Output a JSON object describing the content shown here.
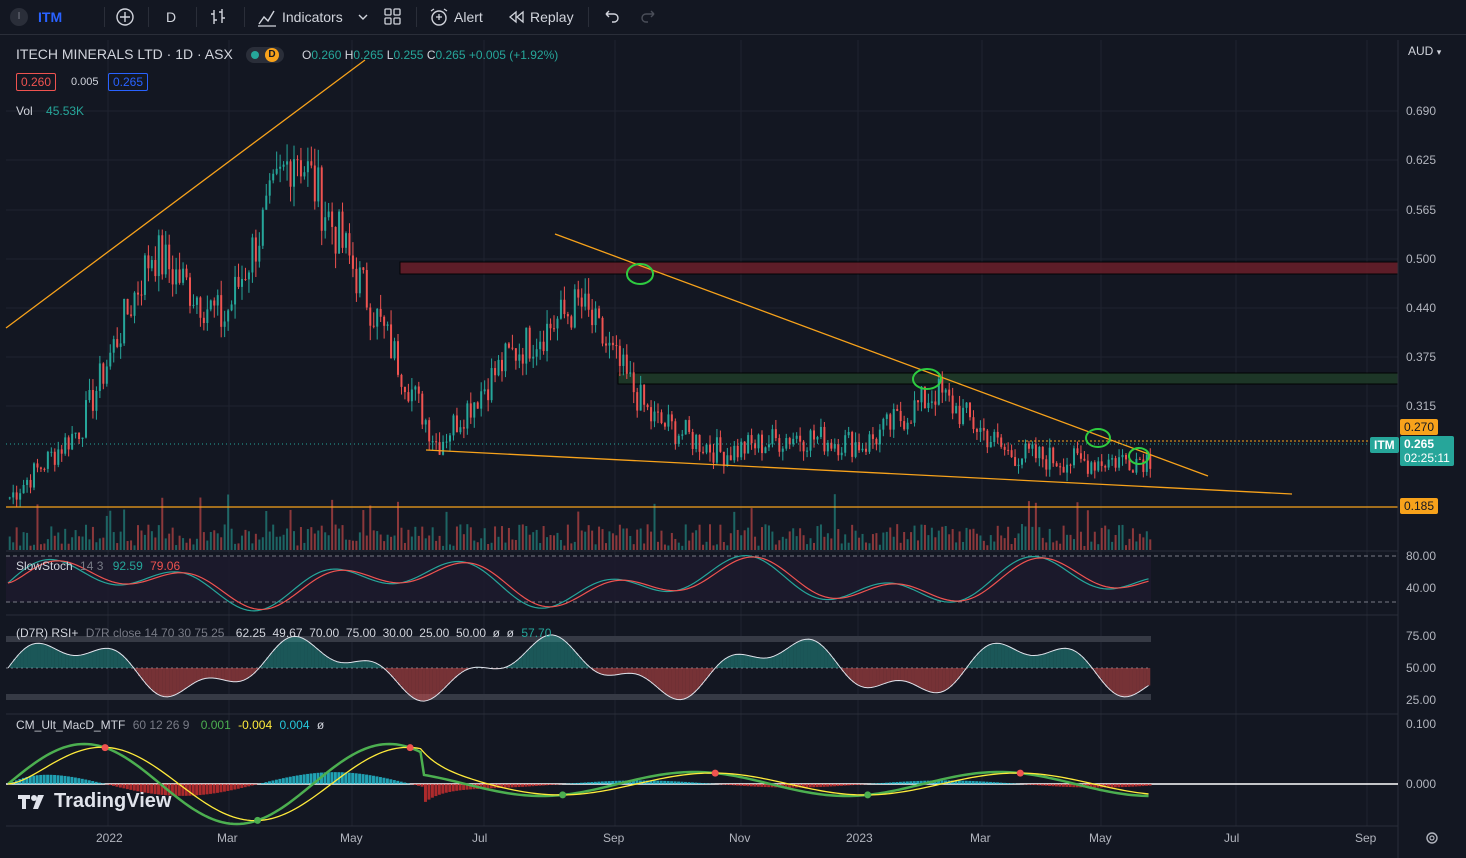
{
  "toolbar": {
    "symbol": "ITM",
    "interval": "D",
    "indicators": "Indicators",
    "alert": "Alert",
    "replay": "Replay"
  },
  "legend": {
    "title": "ITECH MINERALS LTD · 1D · ASX",
    "badge": "D",
    "o_label": "O",
    "o": "0.260",
    "h_label": "H",
    "h": "0.265",
    "l_label": "L",
    "l": "0.255",
    "c_label": "C",
    "c": "0.265",
    "change": "+0.005 (+1.92%)",
    "bid": "0.260",
    "spread": "0.005",
    "ask": "0.265",
    "vol_label": "Vol",
    "vol": "45.53K"
  },
  "indicators": {
    "stoch_name": "SlowStoch",
    "stoch_params": "14 3",
    "stoch_k": "92.59",
    "stoch_d": "79.06",
    "rsi_name": "(D7R) RSI+",
    "rsi_params": "D7R close 14 70 30 75 25",
    "rsi_values": "62.25  49.67  70.00  75.00  30.00  25.00  50.00  ø  ø",
    "rsi_last": "57.70",
    "macd_name": "CM_Ult_MacD_MTF",
    "macd_params": "60 12 26 9",
    "macd_a": "0.001",
    "macd_b": "-0.004",
    "macd_c": "0.004",
    "macd_d": "ø"
  },
  "price_axis": {
    "currency": "AUD",
    "ticks": [
      "0.690",
      "0.625",
      "0.565",
      "0.500",
      "0.440",
      "0.375",
      "0.315",
      "0.185"
    ],
    "tag_270": "0.270",
    "tag_185": "0.185",
    "last_symbol": "ITM",
    "last_price": "0.265",
    "countdown": "02:25:11"
  },
  "stoch_axis": [
    "80.00",
    "40.00"
  ],
  "rsi_axis": [
    "75.00",
    "50.00",
    "25.00"
  ],
  "macd_axis": [
    "0.100",
    "0.000"
  ],
  "time_axis": [
    "2022",
    "Mar",
    "May",
    "Jul",
    "Sep",
    "Nov",
    "2023",
    "Mar",
    "May",
    "Jul",
    "Sep"
  ],
  "watermark": "TradingView",
  "colors": {
    "bg": "#131722",
    "up": "#26a69a",
    "down": "#ef5350",
    "trend": "#f7a21b",
    "resistance_zone": "#6b1f2a",
    "support_zone": "#1f3a28",
    "circle": "#2ecc40"
  },
  "chart_data": {
    "type": "candlestick",
    "title": "ITECH MINERALS LTD · 1D · ASX",
    "ylim": [
      0.16,
      0.74
    ],
    "x": [
      "2022-01",
      "2022-02",
      "2022-03",
      "2022-04",
      "2022-05",
      "2022-06",
      "2022-07",
      "2022-08",
      "2022-09",
      "2022-10",
      "2022-11",
      "2022-12",
      "2023-01",
      "2023-02",
      "2023-03",
      "2023-04",
      "2023-05"
    ],
    "close": [
      0.22,
      0.3,
      0.5,
      0.42,
      0.62,
      0.45,
      0.28,
      0.38,
      0.44,
      0.31,
      0.27,
      0.29,
      0.28,
      0.34,
      0.27,
      0.26,
      0.265
    ],
    "levels": [
      0.5,
      0.34,
      0.27,
      0.185
    ],
    "series": [
      {
        "name": "SlowStoch",
        "last": [
          92.59,
          79.06
        ]
      },
      {
        "name": "(D7R) RSI+",
        "last": 57.7
      },
      {
        "name": "CM_Ult_MacD_MTF",
        "last": [
          0.001,
          -0.004,
          0.004
        ]
      }
    ]
  }
}
